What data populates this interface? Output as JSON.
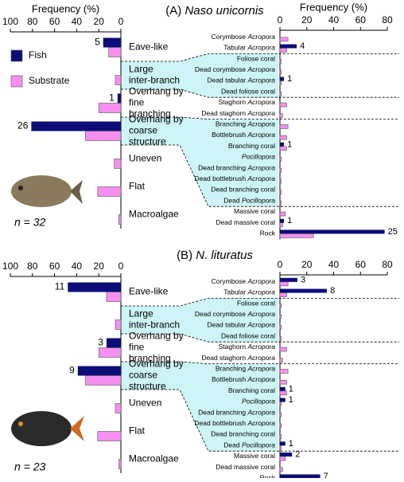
{
  "chart_data": [
    {
      "type": "barh",
      "panel_label": "(A)",
      "title": "Naso unicornis",
      "xlabel": "Frequency (%)",
      "xlim": [
        100,
        0
      ],
      "xticks": [
        100,
        80,
        60,
        40,
        20,
        0
      ],
      "categories": [
        "Eave-like",
        "Large inter-branch",
        "Overhang by fine branching",
        "Overhang by coarse structure",
        "Uneven",
        "Flat",
        "Macroalgae"
      ],
      "series": [
        {
          "name": "Fish",
          "color": "#0d0d78",
          "values": [
            16,
            0,
            3,
            81,
            0,
            0,
            0
          ]
        },
        {
          "name": "Substrate",
          "color": "#f590f0",
          "values": [
            11,
            5,
            20,
            32,
            6,
            21,
            2
          ]
        }
      ],
      "counts": [
        5,
        null,
        1,
        26,
        null,
        null,
        null
      ],
      "legend": "upper left",
      "sample_size_label": "n = 32"
    },
    {
      "type": "barh",
      "xlabel": "Frequency (%)",
      "xlim": [
        0,
        80
      ],
      "xticks": [
        0,
        20,
        40,
        60,
        80
      ],
      "categories": [
        "Corymbose Acropora",
        "Tabular Acropora",
        "Foliose coral",
        "Dead corymbose Acropora",
        "Dead tabular Acropora",
        "Dead foliose coral",
        "Staghorn Acropora",
        "Dead staghorn Acropora",
        "Branching Acropora",
        "Bottlebrush Acropora",
        "Branching coral",
        "Pocillopora",
        "Dead branching Acropora",
        "Dead bottlebrush Acropora",
        "Dead branching coral",
        "Dead Pocillopora",
        "Massive coral",
        "Dead massive coral",
        "Rock"
      ],
      "series": [
        {
          "color": "#0d0d78",
          "values": [
            0,
            12.5,
            0,
            0,
            3,
            0,
            0,
            0,
            0,
            0,
            3,
            0,
            0,
            0,
            0,
            0,
            0,
            3,
            78
          ]
        },
        {
          "color": "#f590f0",
          "values": [
            6,
            5,
            1,
            1,
            1,
            1,
            5,
            2,
            6,
            5,
            5,
            1,
            1,
            1,
            1,
            1,
            4,
            2,
            25
          ]
        }
      ],
      "counts": [
        null,
        4,
        null,
        null,
        1,
        null,
        null,
        null,
        null,
        null,
        1,
        null,
        null,
        null,
        null,
        null,
        null,
        1,
        25
      ]
    },
    {
      "type": "barh",
      "panel_label": "(B)",
      "title": "N. lituratus",
      "xlim": [
        100,
        0
      ],
      "xticks": [
        100,
        80,
        60,
        40,
        20,
        0
      ],
      "categories": [
        "Eave-like",
        "Large inter-branch",
        "Overhang by fine branching",
        "Overhang by coarse structure",
        "Uneven",
        "Flat",
        "Macroalgae"
      ],
      "series": [
        {
          "color": "#0d0d78",
          "values": [
            48,
            0,
            13,
            39,
            0,
            0,
            0
          ]
        },
        {
          "color": "#f590f0",
          "values": [
            13,
            5,
            20,
            32,
            5,
            21,
            2
          ]
        }
      ],
      "counts": [
        11,
        null,
        3,
        9,
        null,
        null,
        null
      ],
      "sample_size_label": "n = 23"
    },
    {
      "type": "barh",
      "xlim": [
        0,
        80
      ],
      "xticks": [
        0,
        20,
        40,
        60,
        80
      ],
      "categories": [
        "Corymbose Acropora",
        "Tabular Acropora",
        "Foliose coral",
        "Dead corymbose Acropora",
        "Dead tabular Acropora",
        "Dead foliose coral",
        "Staghorn Acropora",
        "Dead staghorn Acropora",
        "Branching Acropora",
        "Bottlebrush Acropora",
        "Branching coral",
        "Pocillopora",
        "Dead branching Acropora",
        "Dead bottlebrush Acropora",
        "Dead branching coral",
        "Dead Pocillopora",
        "Massive coral",
        "Dead massive coral",
        "Rock"
      ],
      "series": [
        {
          "color": "#0d0d78",
          "values": [
            13,
            35,
            0,
            0,
            0,
            0,
            0,
            0,
            0,
            0,
            4,
            4,
            0,
            0,
            0,
            4,
            9,
            0,
            30
          ]
        },
        {
          "color": "#f590f0",
          "values": [
            6,
            5,
            1,
            1,
            1,
            1,
            5,
            2,
            6,
            5,
            5,
            1,
            1,
            1,
            1,
            1,
            4,
            2,
            25
          ]
        }
      ],
      "counts": [
        3,
        8,
        null,
        null,
        null,
        null,
        null,
        null,
        null,
        null,
        1,
        1,
        null,
        null,
        null,
        1,
        2,
        null,
        7
      ]
    }
  ]
}
